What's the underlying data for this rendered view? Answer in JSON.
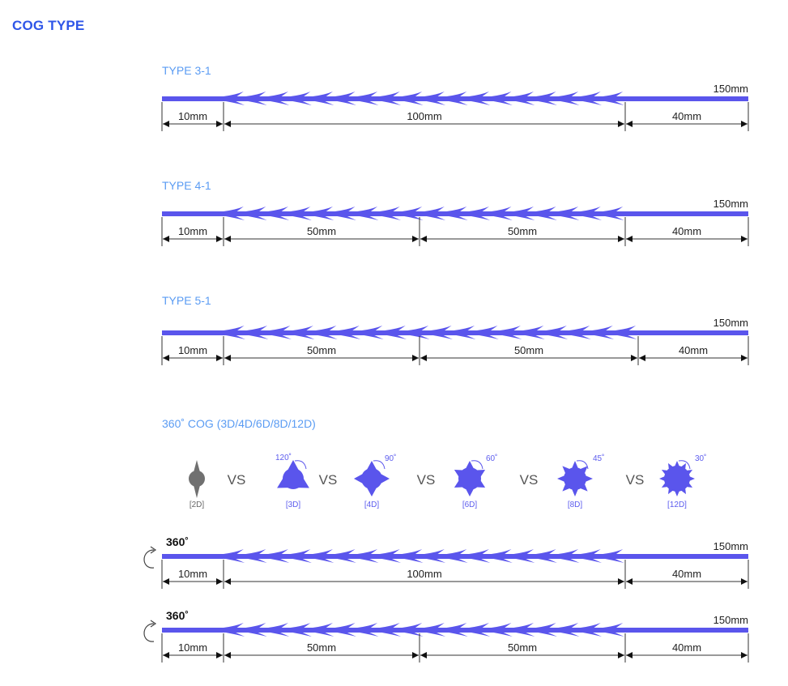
{
  "page_title": "COG TYPE",
  "colors": {
    "accent": "#2f56e8",
    "thread": "#5a55ec",
    "title_light": "#5b9cf3",
    "dark_cog": "#707070"
  },
  "sections": [
    {
      "title": "TYPE 3-1",
      "total": "150mm",
      "segments": [
        "10mm",
        "100mm",
        "40mm"
      ]
    },
    {
      "title": "TYPE 4-1",
      "total": "150mm",
      "segments": [
        "10mm",
        "50mm",
        "50mm",
        "40mm"
      ]
    },
    {
      "title": "TYPE 5-1",
      "total": "150mm",
      "segments": [
        "10mm",
        "50mm",
        "50mm",
        "40mm"
      ]
    }
  ],
  "cog360": {
    "title": "360˚ COG (3D/4D/6D/8D/12D)",
    "vs_label": "VS",
    "cogs": [
      {
        "label": "[2D]",
        "angle": ""
      },
      {
        "label": "[3D]",
        "angle": "120˚"
      },
      {
        "label": "[4D]",
        "angle": "90˚"
      },
      {
        "label": "[6D]",
        "angle": "60˚"
      },
      {
        "label": "[8D]",
        "angle": "45˚"
      },
      {
        "label": "[12D]",
        "angle": "30˚"
      }
    ],
    "threads": [
      {
        "badge": "360˚",
        "total": "150mm",
        "segments": [
          "10mm",
          "100mm",
          "40mm"
        ]
      },
      {
        "badge": "360˚",
        "total": "150mm",
        "segments": [
          "10mm",
          "50mm",
          "50mm",
          "40mm"
        ]
      }
    ]
  }
}
